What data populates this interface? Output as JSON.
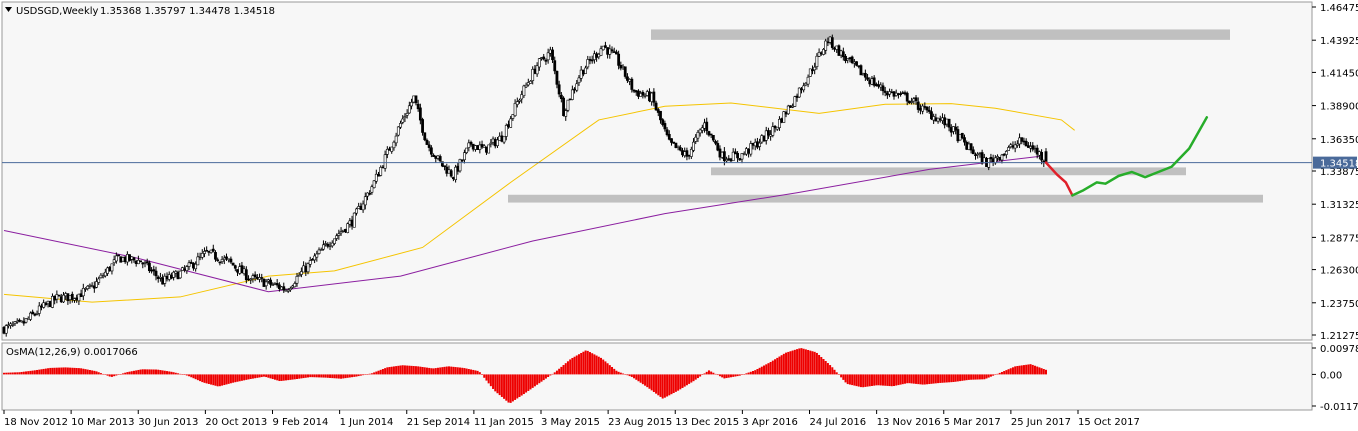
{
  "header": {
    "symbol": "USDSGD,Weekly",
    "ohlc": "1.35368 1.35797 1.34478 1.34518",
    "dropdown_icon": "triangle-down-icon"
  },
  "indicator": {
    "label": "OsMA(12,26,9) 0.0017066",
    "ticks": [
      "0.009781",
      "0.00",
      "-0.011704"
    ]
  },
  "price_axis": {
    "ticks": [
      "1.46475",
      "1.43925",
      "1.41450",
      "1.38900",
      "1.36350",
      "1.33875",
      "1.31325",
      "1.28775",
      "1.26300",
      "1.23750",
      "1.21275"
    ],
    "current_price": "1.34518"
  },
  "time_axis": {
    "ticks": [
      "18 Nov 2012",
      "10 Mar 2013",
      "30 Jun 2013",
      "20 Oct 2013",
      "9 Feb 2014",
      "1 Jun 2014",
      "21 Sep 2014",
      "11 Jan 2015",
      "3 May 2015",
      "23 Aug 2015",
      "13 Dec 2015",
      "3 Apr 2016",
      "24 Jul 2016",
      "13 Nov 2016",
      "5 Mar 2017",
      "25 Jun 2017",
      "15 Oct 2017"
    ]
  },
  "colors": {
    "bull_candle": "#ffffff",
    "bear_candle": "#000000",
    "ma_fast": "#f5c400",
    "ma_slow": "#8b1fa0",
    "zone": "#c0c0c0",
    "projection_down": "#e0202a",
    "projection_up": "#27ad2a",
    "osma": "#ee0000",
    "price_line": "#4a6a9a"
  },
  "chart_data": {
    "type": "candlestick",
    "timeframe": "weekly",
    "ylim": [
      1.21275,
      1.46475
    ],
    "key_levels": [
      {
        "from": 1.4395,
        "to": 1.4475
      },
      {
        "from": 1.3355,
        "to": 1.3415
      },
      {
        "from": 1.3145,
        "to": 1.3205
      }
    ],
    "path_points": [
      [
        0,
        1.2178
      ],
      [
        8,
        1.221
      ],
      [
        16,
        1.232
      ],
      [
        24,
        1.241
      ],
      [
        32,
        1.2425
      ],
      [
        40,
        1.249
      ],
      [
        52,
        1.272
      ],
      [
        62,
        1.2695
      ],
      [
        72,
        1.254
      ],
      [
        82,
        1.262
      ],
      [
        92,
        1.276
      ],
      [
        102,
        1.269
      ],
      [
        112,
        1.256
      ],
      [
        120,
        1.2525
      ],
      [
        128,
        1.248
      ],
      [
        138,
        1.266
      ],
      [
        148,
        1.285
      ],
      [
        158,
        1.3
      ],
      [
        168,
        1.33
      ],
      [
        180,
        1.375
      ],
      [
        186,
        1.395
      ],
      [
        192,
        1.36
      ],
      [
        198,
        1.345
      ],
      [
        204,
        1.335
      ],
      [
        212,
        1.36
      ],
      [
        218,
        1.355
      ],
      [
        226,
        1.365
      ],
      [
        234,
        1.395
      ],
      [
        242,
        1.42
      ],
      [
        248,
        1.43
      ],
      [
        254,
        1.385
      ],
      [
        262,
        1.415
      ],
      [
        272,
        1.435
      ],
      [
        278,
        1.425
      ],
      [
        286,
        1.4
      ],
      [
        294,
        1.395
      ],
      [
        302,
        1.36
      ],
      [
        310,
        1.35
      ],
      [
        318,
        1.375
      ],
      [
        326,
        1.35
      ],
      [
        334,
        1.35
      ],
      [
        342,
        1.36
      ],
      [
        350,
        1.372
      ],
      [
        358,
        1.392
      ],
      [
        366,
        1.415
      ],
      [
        374,
        1.44
      ],
      [
        382,
        1.425
      ],
      [
        392,
        1.41
      ],
      [
        400,
        1.4
      ],
      [
        410,
        1.395
      ],
      [
        418,
        1.385
      ],
      [
        428,
        1.375
      ],
      [
        438,
        1.356
      ],
      [
        446,
        1.345
      ],
      [
        454,
        1.353
      ],
      [
        462,
        1.362
      ],
      [
        470,
        1.352
      ],
      [
        473,
        1.3452
      ]
    ],
    "ma_fast": [
      [
        0,
        1.244
      ],
      [
        40,
        1.238
      ],
      [
        80,
        1.242
      ],
      [
        120,
        1.258
      ],
      [
        150,
        1.262
      ],
      [
        190,
        1.28
      ],
      [
        230,
        1.33
      ],
      [
        270,
        1.378
      ],
      [
        300,
        1.3885
      ],
      [
        330,
        1.391
      ],
      [
        370,
        1.383
      ],
      [
        400,
        1.39
      ],
      [
        430,
        1.3905
      ],
      [
        450,
        1.387
      ],
      [
        480,
        1.378
      ],
      [
        486,
        1.37
      ]
    ],
    "ma_slow": [
      [
        0,
        1.293
      ],
      [
        60,
        1.272
      ],
      [
        120,
        1.246
      ],
      [
        180,
        1.258
      ],
      [
        240,
        1.285
      ],
      [
        300,
        1.306
      ],
      [
        360,
        1.322
      ],
      [
        420,
        1.34
      ],
      [
        470,
        1.35
      ]
    ],
    "projection": [
      [
        473,
        1.3452
      ],
      [
        478,
        1.336
      ],
      [
        482,
        1.33
      ],
      [
        485,
        1.32
      ],
      [
        490,
        1.324
      ],
      [
        496,
        1.33
      ],
      [
        500,
        1.329
      ],
      [
        506,
        1.335
      ],
      [
        512,
        1.338
      ],
      [
        518,
        1.334
      ],
      [
        524,
        1.338
      ],
      [
        530,
        1.342
      ],
      [
        538,
        1.356
      ],
      [
        546,
        1.38
      ]
    ],
    "osma_values": [
      0.0006,
      0.0008,
      0.0015,
      0.0024,
      0.0026,
      0.0023,
      0.0012,
      -0.001,
      0.0008,
      0.0019,
      0.0018,
      0.0009,
      -0.0005,
      -0.003,
      -0.0045,
      -0.003,
      -0.0018,
      -0.0008,
      -0.0025,
      -0.0018,
      -0.001,
      -0.0012,
      -0.0016,
      -0.0008,
      0.0004,
      0.0026,
      0.0034,
      0.003,
      0.0022,
      0.003,
      0.0024,
      0.0012,
      -0.006,
      -0.0108,
      -0.007,
      -0.003,
      0.001,
      0.0058,
      0.009,
      0.006,
      0.0012,
      -0.001,
      -0.0048,
      -0.009,
      -0.006,
      -0.0025,
      0.0015,
      -0.0015,
      -0.0005,
      0.0015,
      0.0045,
      0.008,
      0.0098,
      0.0082,
      0.003,
      -0.0035,
      -0.0048,
      -0.004,
      -0.0044,
      -0.0032,
      -0.0038,
      -0.0032,
      -0.0028,
      -0.002,
      -0.0018,
      0.0006,
      0.003,
      0.0038,
      0.0017
    ],
    "osma_ylim": [
      -0.011704,
      0.009781
    ]
  }
}
